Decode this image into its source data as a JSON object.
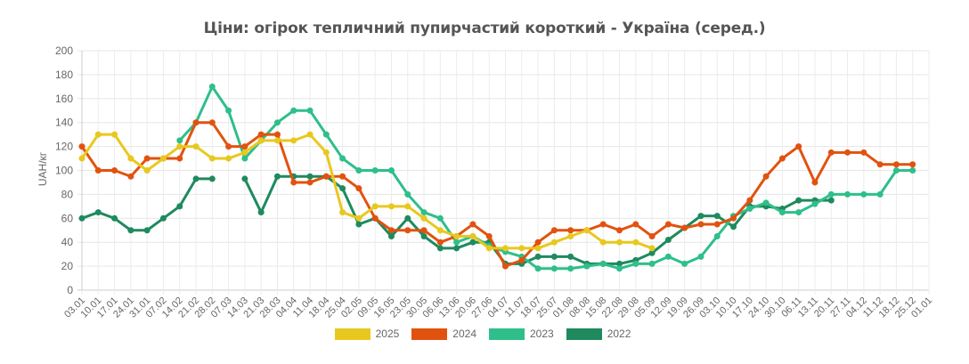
{
  "chart": {
    "title": "Ціни: огірок тепличний пупирчастий короткий - Україна (серед.)",
    "ylabel": "UAH/кг"
  },
  "chart_data": {
    "type": "line",
    "title": "Ціни: огірок тепличний пупирчастий короткий - Україна (серед.)",
    "xlabel": "",
    "ylabel": "UAH/кг",
    "ylim": [
      0,
      200
    ],
    "yticks": [
      0,
      20,
      40,
      60,
      80,
      100,
      120,
      140,
      160,
      180,
      200
    ],
    "grid": true,
    "legend_position": "bottom",
    "categories": [
      "03.01",
      "10.01",
      "17.01",
      "24.01",
      "31.01",
      "07.02",
      "14.02",
      "21.02",
      "28.02",
      "07.03",
      "14.03",
      "21.03",
      "28.03",
      "04.04",
      "11.04",
      "18.04",
      "25.04",
      "02.05",
      "09.05",
      "16.05",
      "23.05",
      "30.05",
      "06.06",
      "13.06",
      "20.06",
      "27.06",
      "04.07",
      "11.07",
      "18.07",
      "25.07",
      "01.08",
      "08.08",
      "15.08",
      "22.08",
      "29.08",
      "05.09",
      "12.09",
      "19.09",
      "26.09",
      "03.10",
      "10.10",
      "17.10",
      "24.10",
      "30.10",
      "06.11",
      "13.11",
      "20.11",
      "27.11",
      "04.12",
      "11.12",
      "18.12",
      "25.12",
      "01.01"
    ],
    "series": [
      {
        "name": "2025",
        "color": "#E8C81E",
        "values": [
          110,
          130,
          130,
          110,
          100,
          110,
          120,
          120,
          110,
          110,
          115,
          125,
          125,
          125,
          130,
          115,
          65,
          60,
          70,
          70,
          70,
          60,
          50,
          45,
          45,
          35,
          35,
          35,
          35,
          40,
          45,
          50,
          40,
          40,
          40,
          35,
          null,
          null,
          null,
          null,
          null,
          null,
          null,
          null,
          null,
          null,
          null,
          null,
          null,
          null,
          null,
          null,
          null
        ]
      },
      {
        "name": "2024",
        "color": "#E2520F",
        "values": [
          120,
          100,
          100,
          95,
          110,
          110,
          110,
          140,
          140,
          120,
          120,
          130,
          130,
          90,
          90,
          95,
          95,
          85,
          60,
          50,
          50,
          50,
          40,
          45,
          55,
          45,
          20,
          25,
          40,
          50,
          50,
          50,
          55,
          50,
          55,
          45,
          55,
          52,
          55,
          55,
          60,
          75,
          95,
          110,
          120,
          90,
          115,
          115,
          115,
          105,
          105,
          105,
          null
        ]
      },
      {
        "name": "2023",
        "color": "#2EBF8A",
        "values": [
          null,
          null,
          null,
          null,
          null,
          null,
          125,
          140,
          170,
          150,
          110,
          125,
          140,
          150,
          150,
          130,
          110,
          100,
          100,
          100,
          80,
          65,
          60,
          40,
          45,
          37,
          32,
          28,
          18,
          18,
          18,
          20,
          22,
          18,
          22,
          22,
          28,
          22,
          28,
          45,
          62,
          68,
          73,
          65,
          65,
          72,
          80,
          80,
          80,
          80,
          100,
          100,
          null
        ]
      },
      {
        "name": "2022",
        "color": "#1E8A5E",
        "values": [
          60,
          65,
          60,
          50,
          50,
          60,
          70,
          93,
          93,
          null,
          93,
          65,
          95,
          95,
          95,
          95,
          85,
          55,
          60,
          45,
          60,
          45,
          35,
          35,
          40,
          40,
          22,
          22,
          28,
          28,
          28,
          22,
          22,
          22,
          25,
          31,
          42,
          52,
          62,
          62,
          53,
          70,
          70,
          68,
          75,
          75,
          75,
          null,
          null,
          null,
          null,
          null,
          null
        ]
      }
    ]
  },
  "legend": {
    "items": [
      {
        "label": "2025",
        "color": "#E8C81E"
      },
      {
        "label": "2024",
        "color": "#E2520F"
      },
      {
        "label": "2023",
        "color": "#2EBF8A"
      },
      {
        "label": "2022",
        "color": "#1E8A5E"
      }
    ]
  }
}
